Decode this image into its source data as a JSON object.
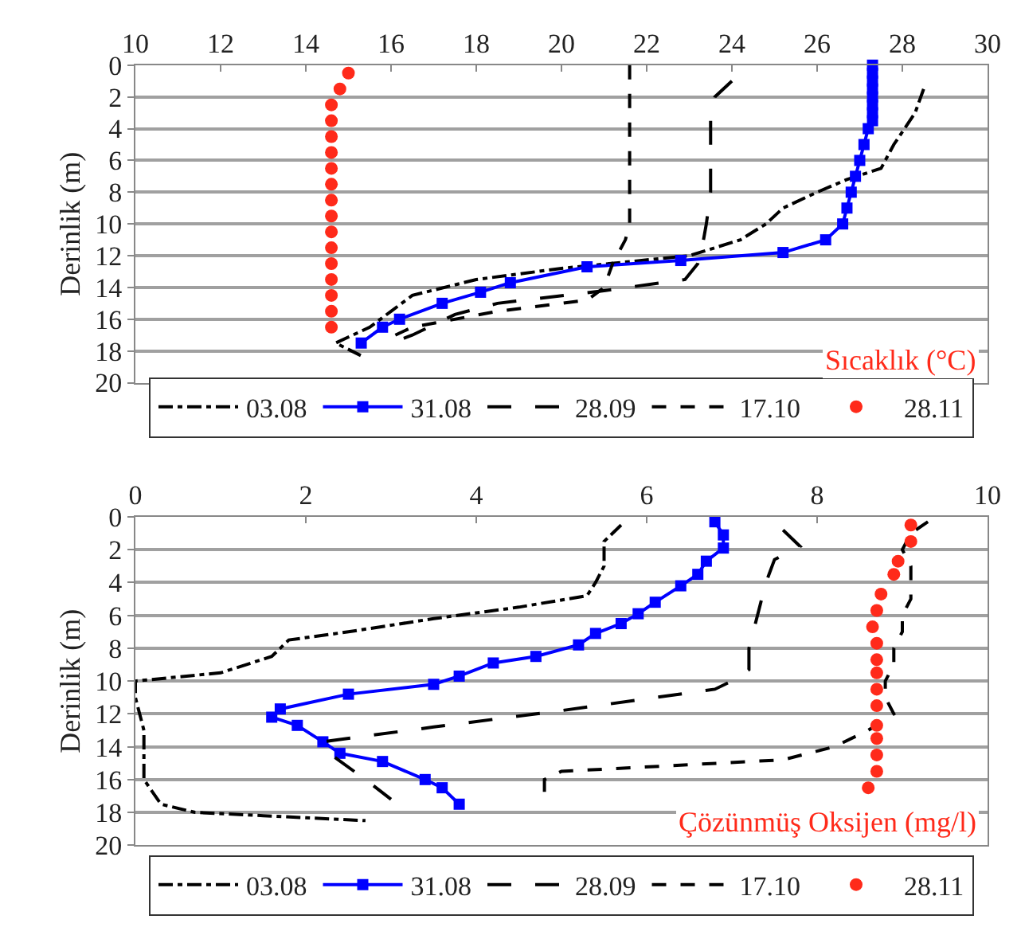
{
  "chart_data": [
    {
      "type": "line",
      "xlim": [
        10,
        30
      ],
      "xticks": [
        10,
        12,
        14,
        16,
        18,
        20,
        22,
        24,
        26,
        28,
        30
      ],
      "ylim": [
        20,
        0
      ],
      "yticks": [
        0,
        2,
        4,
        6,
        8,
        10,
        12,
        14,
        16,
        18,
        20
      ],
      "ylabel": "Derinlik (m)",
      "grid": "y",
      "legend": "bottom",
      "annotations": [
        "Sıcaklık (°C)"
      ],
      "series": [
        {
          "name": "03.08",
          "color": "#000000",
          "line_style": "dashdot",
          "marker": "none",
          "x": [
            28.5,
            28.3,
            27.8,
            27.5,
            26.7,
            26.0,
            25.2,
            24.8,
            24.2,
            23.0,
            20.0,
            18.0,
            16.5,
            16.0,
            15.5,
            14.7,
            15.3
          ],
          "values": [
            1.5,
            3,
            5,
            6.5,
            7.2,
            8,
            9,
            10,
            11,
            12,
            12.8,
            13.5,
            14.5,
            15.5,
            16.5,
            17.5,
            18.3
          ]
        },
        {
          "name": "31.08",
          "color": "#0000ff",
          "line_style": "solid",
          "marker": "square",
          "x": [
            27.3,
            27.3,
            27.3,
            27.3,
            27.3,
            27.3,
            27.3,
            27.3,
            27.2,
            27.1,
            27.0,
            26.9,
            26.8,
            26.7,
            26.6,
            26.2,
            25.2,
            22.8,
            20.6,
            18.8,
            18.1,
            17.2,
            16.2,
            15.8,
            15.3
          ],
          "values": [
            0,
            0.5,
            1,
            1.5,
            2,
            2.5,
            3,
            3.5,
            4,
            5,
            6,
            7,
            8,
            9,
            10,
            11,
            11.8,
            12.3,
            12.7,
            13.7,
            14.3,
            15,
            16,
            16.5,
            17.5
          ]
        },
        {
          "name": "28.09",
          "color": "#000000",
          "line_style": "longdash",
          "marker": "none",
          "x": [
            24.0,
            23.6,
            23.5,
            23.5,
            23.5,
            23.4,
            23.3,
            23.2,
            22.9,
            21.0,
            18.5,
            17.5,
            16.5,
            16.2
          ],
          "values": [
            1,
            2,
            3,
            5,
            8,
            10,
            11.5,
            12.5,
            13.5,
            14.2,
            15,
            15.7,
            17,
            17.3
          ]
        },
        {
          "name": "17.10",
          "color": "#000000",
          "line_style": "dashed",
          "marker": "none",
          "x": [
            21.6,
            21.6,
            21.6,
            21.5,
            21.2,
            21.0,
            20.6,
            18.5,
            16.5,
            16.1
          ],
          "values": [
            0,
            5,
            10,
            11,
            12.5,
            14,
            14.8,
            15.5,
            16.5,
            17
          ]
        },
        {
          "name": "28.11",
          "color": "#ff2a1a",
          "type": "scatter",
          "marker": "circle",
          "x": [
            15.0,
            14.8,
            14.6,
            14.6,
            14.6,
            14.6,
            14.6,
            14.6,
            14.6,
            14.6,
            14.6,
            14.6,
            14.6,
            14.6,
            14.6,
            14.6,
            14.6
          ],
          "values": [
            0.5,
            1.5,
            2.5,
            3.5,
            4.5,
            5.5,
            6.5,
            7.5,
            8.5,
            9.5,
            10.5,
            11.5,
            12.5,
            13.5,
            14.5,
            15.5,
            16.5
          ]
        }
      ]
    },
    {
      "type": "line",
      "xlim": [
        0,
        10
      ],
      "xticks": [
        0,
        2,
        4,
        6,
        8,
        10
      ],
      "ylim": [
        20,
        0
      ],
      "yticks": [
        0,
        2,
        4,
        6,
        8,
        10,
        12,
        14,
        16,
        18,
        20
      ],
      "ylabel": "Derinlik (m)",
      "grid": "y",
      "legend": "bottom",
      "annotations": [
        "Çözünmüş Oksijen (mg/l)"
      ],
      "series": [
        {
          "name": "03.08",
          "color": "#000000",
          "line_style": "dashdot",
          "marker": "none",
          "x": [
            5.7,
            5.5,
            5.5,
            5.4,
            5.3,
            4.5,
            3.5,
            2.5,
            1.8,
            1.6,
            1.0,
            0.0,
            0.0,
            0.1,
            0.1,
            0.1,
            0.3,
            0.7,
            1.5,
            2.7
          ],
          "values": [
            0.5,
            1.5,
            3,
            4,
            4.8,
            5.5,
            6.2,
            7,
            7.5,
            8.5,
            9.5,
            10,
            11,
            13,
            15,
            16,
            17.5,
            18,
            18.2,
            18.5
          ]
        },
        {
          "name": "31.08",
          "color": "#0000ff",
          "line_style": "solid",
          "marker": "square",
          "x": [
            6.8,
            6.9,
            6.9,
            6.7,
            6.6,
            6.4,
            6.1,
            5.9,
            5.7,
            5.4,
            5.2,
            4.7,
            4.2,
            3.8,
            3.5,
            2.5,
            1.7,
            1.6,
            1.9,
            2.2,
            2.4,
            2.9,
            3.4,
            3.6,
            3.8
          ],
          "values": [
            0.3,
            1.1,
            1.9,
            2.7,
            3.5,
            4.2,
            5.2,
            5.9,
            6.5,
            7.1,
            7.8,
            8.5,
            8.9,
            9.7,
            10.2,
            10.8,
            11.7,
            12.2,
            12.7,
            13.7,
            14.4,
            14.9,
            16,
            16.5,
            17.5
          ]
        },
        {
          "name": "28.09",
          "color": "#000000",
          "line_style": "longdash",
          "marker": "none",
          "x": [
            7.6,
            7.8,
            7.5,
            7.4,
            7.3,
            7.2,
            7.2,
            7.0,
            6.8,
            5.0,
            3.5,
            2.2,
            2.3,
            2.7,
            3.0
          ],
          "values": [
            0.8,
            1.8,
            2.6,
            4,
            6,
            8,
            9.3,
            10,
            10.5,
            11.8,
            12.8,
            13.7,
            14.5,
            16,
            17.2
          ]
        },
        {
          "name": "17.10",
          "color": "#000000",
          "line_style": "dashed",
          "marker": "none",
          "x": [
            9.3,
            9.1,
            9.0,
            9.1,
            9.1,
            9.1,
            9.0,
            9.0,
            8.9,
            8.9,
            8.8,
            8.8,
            8.9,
            8.6,
            8.2,
            7.6,
            5.0,
            4.8,
            4.8
          ],
          "values": [
            0.3,
            1,
            2,
            3,
            4,
            5,
            6,
            7,
            8,
            9,
            10,
            11,
            12,
            13,
            14,
            14.8,
            15.5,
            16,
            17
          ]
        },
        {
          "name": "28.11",
          "color": "#ff2a1a",
          "type": "scatter",
          "marker": "circle",
          "x": [
            9.1,
            9.1,
            8.95,
            8.9,
            8.75,
            8.7,
            8.65,
            8.7,
            8.7,
            8.7,
            8.7,
            8.7,
            8.7,
            8.7,
            8.7,
            8.7,
            8.6
          ],
          "values": [
            0.5,
            1.5,
            2.7,
            3.5,
            4.7,
            5.7,
            6.7,
            7.7,
            8.7,
            9.5,
            10.5,
            11.5,
            12.7,
            13.5,
            14.5,
            15.5,
            16.5
          ]
        }
      ]
    }
  ]
}
